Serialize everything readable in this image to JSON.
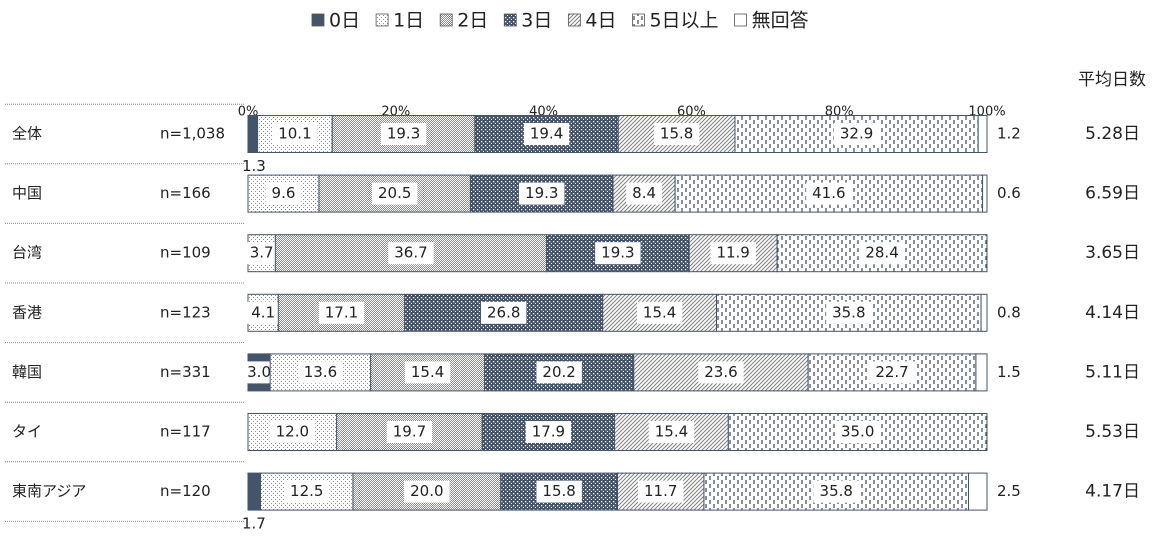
{
  "chart_data": {
    "type": "stacked-bar-horizontal",
    "categories": [
      "全体",
      "中国",
      "台湾",
      "香港",
      "韓国",
      "タイ",
      "東南アジア"
    ],
    "sample_sizes": [
      "n=1,038",
      "n=166",
      "n=109",
      "n=123",
      "n=331",
      "n=117",
      "n=120"
    ],
    "average_label": "平均日数",
    "averages": [
      "5.28日",
      "6.59日",
      "3.65日",
      "4.14日",
      "5.11日",
      "5.53日",
      "4.17日"
    ],
    "xlim": [
      0,
      100
    ],
    "xticks": [
      {
        "value": 0,
        "label": "0%"
      },
      {
        "value": 20,
        "label": "20%"
      },
      {
        "value": 40,
        "label": "40%"
      },
      {
        "value": 60,
        "label": "60%"
      },
      {
        "value": 80,
        "label": "80%"
      },
      {
        "value": 100,
        "label": "100%"
      }
    ],
    "legend": "top",
    "series": [
      {
        "name": "0日",
        "color": "#44546a",
        "pattern": "solid",
        "values": [
          1.3,
          null,
          null,
          null,
          3.0,
          null,
          1.7
        ],
        "value_labels": [
          "1.3",
          null,
          null,
          null,
          "3.0",
          null,
          "1.7"
        ]
      },
      {
        "name": "1日",
        "color": "#8c8c8c",
        "pattern": "sparse-dots",
        "values": [
          10.1,
          9.6,
          3.7,
          4.1,
          13.6,
          12.0,
          12.5
        ],
        "value_labels": [
          "10.1",
          "9.6",
          "3.7",
          "4.1",
          "13.6",
          "12.0",
          "12.5"
        ]
      },
      {
        "name": "2日",
        "color": "#8c8c8c",
        "pattern": "dense-dots",
        "values": [
          19.3,
          20.5,
          36.7,
          17.1,
          15.4,
          19.7,
          20.0
        ],
        "value_labels": [
          "19.3",
          "20.5",
          "36.7",
          "17.1",
          "15.4",
          "19.7",
          "20.0"
        ]
      },
      {
        "name": "3日",
        "color": "#44546a",
        "pattern": "dark-dots",
        "values": [
          19.4,
          19.3,
          19.3,
          26.8,
          20.2,
          17.9,
          15.8
        ],
        "value_labels": [
          "19.4",
          "19.3",
          "19.3",
          "26.8",
          "20.2",
          "17.9",
          "15.8"
        ]
      },
      {
        "name": "4日",
        "color": "#7f7f7f",
        "pattern": "diagonal",
        "values": [
          15.8,
          8.4,
          11.9,
          15.4,
          23.6,
          15.4,
          11.7
        ],
        "value_labels": [
          "15.8",
          "8.4",
          "11.9",
          "15.4",
          "23.6",
          "15.4",
          "11.7"
        ]
      },
      {
        "name": "5日以上",
        "color": "#44546a",
        "pattern": "vertical-dash",
        "values": [
          32.9,
          41.6,
          28.4,
          35.8,
          22.7,
          35.0,
          35.8
        ],
        "value_labels": [
          "32.9",
          "41.6",
          "28.4",
          "35.8",
          "22.7",
          "35.0",
          "35.8"
        ]
      },
      {
        "name": "無回答",
        "color": "#ffffff",
        "pattern": "none",
        "values": [
          1.2,
          0.6,
          null,
          0.8,
          1.5,
          null,
          2.5
        ],
        "value_labels": [
          "1.2",
          "0.6",
          null,
          "0.8",
          "1.5",
          null,
          "2.5"
        ]
      }
    ]
  }
}
